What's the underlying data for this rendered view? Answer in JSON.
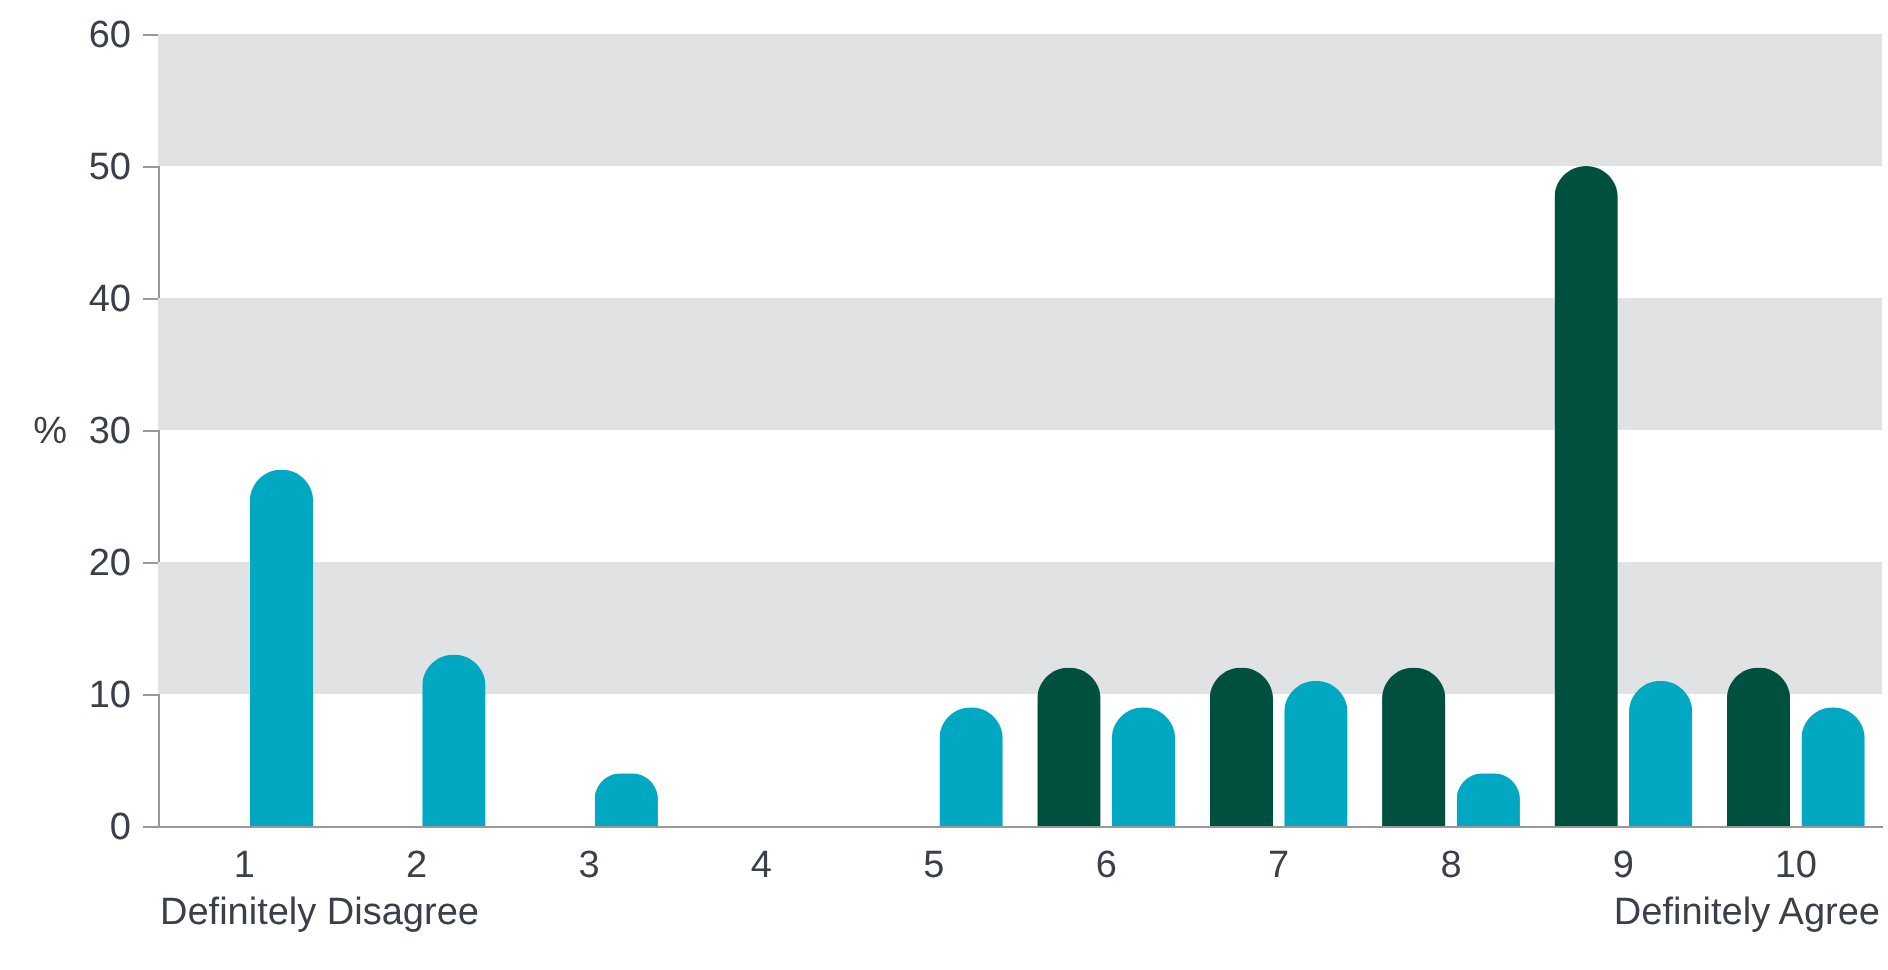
{
  "chart_data": {
    "type": "bar",
    "ylabel": "%",
    "categories": [
      "1",
      "2",
      "3",
      "4",
      "5",
      "6",
      "7",
      "8",
      "9",
      "10"
    ],
    "series": [
      {
        "color": "#00503f",
        "values": [
          null,
          null,
          null,
          null,
          0,
          12,
          12,
          12,
          50,
          12
        ]
      },
      {
        "color": "#00a9c1",
        "values": [
          27,
          13,
          4,
          0,
          9,
          9,
          11,
          4,
          11,
          9
        ]
      }
    ],
    "ylim": [
      0,
      60
    ],
    "yticks": [
      0,
      10,
      20,
      30,
      40,
      50,
      60
    ],
    "bands": [
      {
        "axis": "y",
        "from": 10,
        "to": 20,
        "color": "#e1e2e4"
      },
      {
        "axis": "y",
        "from": 30,
        "to": 40,
        "color": "#e1e2e4"
      },
      {
        "axis": "y",
        "from": 50,
        "to": 60,
        "color": "#e1e2e4"
      }
    ],
    "annotations": [
      "Definitely Disagree",
      "Definitely Agree"
    ]
  }
}
